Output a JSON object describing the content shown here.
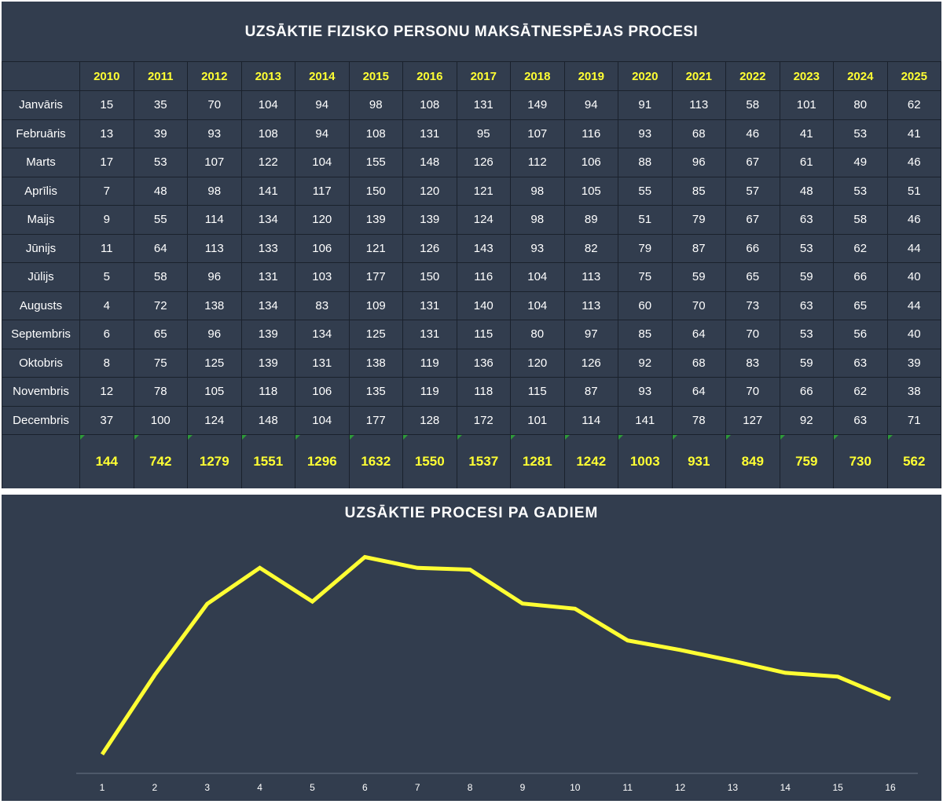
{
  "table": {
    "title": "UZSĀKTIE FIZISKO PERSONU MAKSĀTNESPĒJAS PROCESI",
    "years": [
      "2010",
      "2011",
      "2012",
      "2013",
      "2014",
      "2015",
      "2016",
      "2017",
      "2018",
      "2019",
      "2020",
      "2021",
      "2022",
      "2023",
      "2024",
      "2025"
    ],
    "rows": [
      {
        "month": "Janvāris",
        "values": [
          "15",
          "35",
          "70",
          "104",
          "94",
          "98",
          "108",
          "131",
          "149",
          "94",
          "91",
          "113",
          "58",
          "101",
          "80",
          "62"
        ]
      },
      {
        "month": "Februāris",
        "values": [
          "13",
          "39",
          "93",
          "108",
          "94",
          "108",
          "131",
          "95",
          "107",
          "116",
          "93",
          "68",
          "46",
          "41",
          "53",
          "41"
        ]
      },
      {
        "month": "Marts",
        "values": [
          "17",
          "53",
          "107",
          "122",
          "104",
          "155",
          "148",
          "126",
          "112",
          "106",
          "88",
          "96",
          "67",
          "61",
          "49",
          "46"
        ]
      },
      {
        "month": "Aprīlis",
        "values": [
          "7",
          "48",
          "98",
          "141",
          "117",
          "150",
          "120",
          "121",
          "98",
          "105",
          "55",
          "85",
          "57",
          "48",
          "53",
          "51"
        ]
      },
      {
        "month": "Maijs",
        "values": [
          "9",
          "55",
          "114",
          "134",
          "120",
          "139",
          "139",
          "124",
          "98",
          "89",
          "51",
          "79",
          "67",
          "63",
          "58",
          "46"
        ]
      },
      {
        "month": "Jūnijs",
        "values": [
          "11",
          "64",
          "113",
          "133",
          "106",
          "121",
          "126",
          "143",
          "93",
          "82",
          "79",
          "87",
          "66",
          "53",
          "62",
          "44"
        ]
      },
      {
        "month": "Jūlijs",
        "values": [
          "5",
          "58",
          "96",
          "131",
          "103",
          "177",
          "150",
          "116",
          "104",
          "113",
          "75",
          "59",
          "65",
          "59",
          "66",
          "40"
        ]
      },
      {
        "month": "Augusts",
        "values": [
          "4",
          "72",
          "138",
          "134",
          "83",
          "109",
          "131",
          "140",
          "104",
          "113",
          "60",
          "70",
          "73",
          "63",
          "65",
          "44"
        ]
      },
      {
        "month": "Septembris",
        "values": [
          "6",
          "65",
          "96",
          "139",
          "134",
          "125",
          "131",
          "115",
          "80",
          "97",
          "85",
          "64",
          "70",
          "53",
          "56",
          "40"
        ]
      },
      {
        "month": "Oktobris",
        "values": [
          "8",
          "75",
          "125",
          "139",
          "131",
          "138",
          "119",
          "136",
          "120",
          "126",
          "92",
          "68",
          "83",
          "59",
          "63",
          "39"
        ]
      },
      {
        "month": "Novembris",
        "values": [
          "12",
          "78",
          "105",
          "118",
          "106",
          "135",
          "119",
          "118",
          "115",
          "87",
          "93",
          "64",
          "70",
          "66",
          "62",
          "38"
        ]
      },
      {
        "month": "Decembris",
        "values": [
          "37",
          "100",
          "124",
          "148",
          "104",
          "177",
          "128",
          "172",
          "101",
          "114",
          "141",
          "78",
          "127",
          "92",
          "63",
          "71"
        ]
      }
    ],
    "totals": [
      "144",
      "742",
      "1279",
      "1551",
      "1296",
      "1632",
      "1550",
      "1537",
      "1281",
      "1242",
      "1003",
      "931",
      "849",
      "759",
      "730",
      "562"
    ]
  },
  "colors": {
    "panel_bg": "#323d4e",
    "accent_yellow": "#ffff33",
    "text_white": "#ffffff"
  },
  "chart_data": {
    "type": "line",
    "title": "UZSĀKTIE PROCESI PA GADIEM",
    "categories": [
      "1",
      "2",
      "3",
      "4",
      "5",
      "6",
      "7",
      "8",
      "9",
      "10",
      "11",
      "12",
      "13",
      "14",
      "15",
      "16"
    ],
    "series": [
      {
        "values": [
          144,
          742,
          1279,
          1551,
          1296,
          1632,
          1550,
          1537,
          1281,
          1242,
          1003,
          931,
          849,
          759,
          730,
          562
        ]
      }
    ],
    "ylim": [
      0,
      1700
    ],
    "xlabel": "",
    "ylabel": "",
    "grid": false,
    "line_color": "#ffff33"
  }
}
